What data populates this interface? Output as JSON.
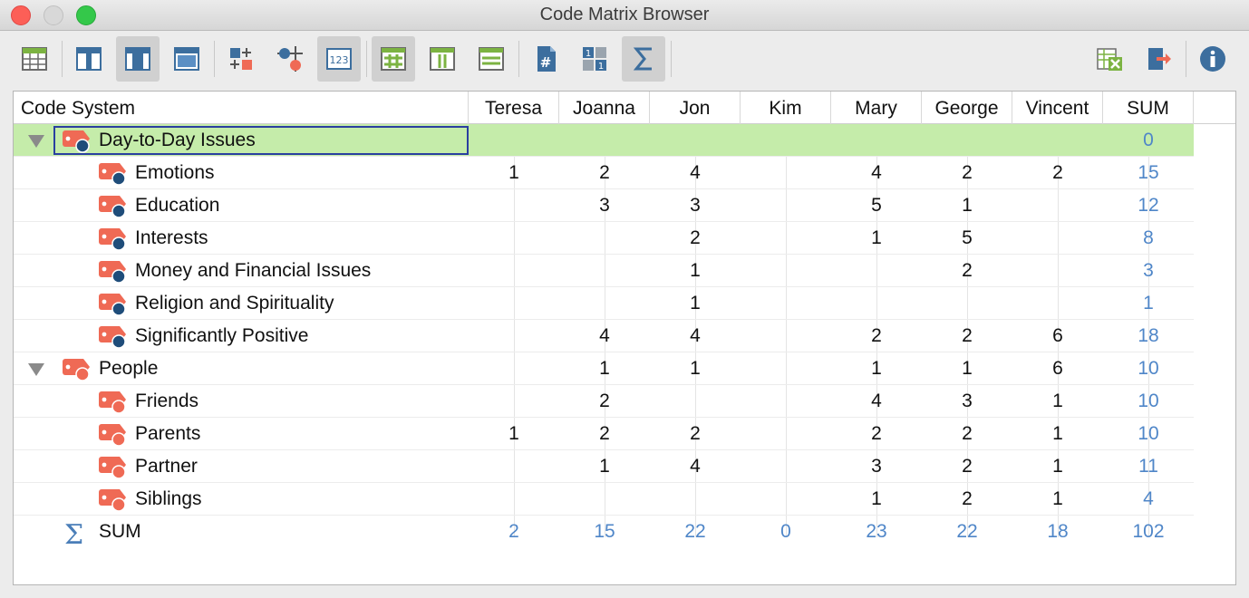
{
  "window": {
    "title": "Code Matrix Browser"
  },
  "toolbar": {
    "left": [
      "table-grid-icon",
      "layout-top-icon",
      "layout-center-icon",
      "layout-window-icon",
      "code-grid-icon",
      "node-link-icon",
      "numbers-123-icon",
      "hash-grid-icon",
      "columns-icon",
      "rows-icon",
      "document-hash-icon",
      "number-squares-icon",
      "sigma-icon"
    ],
    "right": [
      "excel-export-icon",
      "export-arrow-icon",
      "info-icon"
    ]
  },
  "table": {
    "code_header": "Code System",
    "columns": [
      "Teresa",
      "Joanna",
      "Jon",
      "Kim",
      "Mary",
      "George",
      "Vincent",
      "SUM"
    ],
    "rows": [
      {
        "label": "Day-to-Day Issues",
        "level": 0,
        "expanded": true,
        "selected": true,
        "icon_color": "#1f4d7a",
        "values": [
          "",
          "",
          "",
          "",
          "",
          "",
          ""
        ],
        "sum": "0"
      },
      {
        "label": "Emotions",
        "level": 1,
        "icon_color": "#1f4d7a",
        "values": [
          "1",
          "2",
          "4",
          "",
          "4",
          "2",
          "2"
        ],
        "sum": "15"
      },
      {
        "label": "Education",
        "level": 1,
        "icon_color": "#1f4d7a",
        "values": [
          "",
          "3",
          "3",
          "",
          "5",
          "1",
          ""
        ],
        "sum": "12"
      },
      {
        "label": "Interests",
        "level": 1,
        "icon_color": "#1f4d7a",
        "values": [
          "",
          "",
          "2",
          "",
          "1",
          "5",
          ""
        ],
        "sum": "8"
      },
      {
        "label": "Money and Financial Issues",
        "level": 1,
        "icon_color": "#1f4d7a",
        "values": [
          "",
          "",
          "1",
          "",
          "",
          "2",
          ""
        ],
        "sum": "3"
      },
      {
        "label": "Religion and Spirituality",
        "level": 1,
        "icon_color": "#1f4d7a",
        "values": [
          "",
          "",
          "1",
          "",
          "",
          "",
          ""
        ],
        "sum": "1"
      },
      {
        "label": "Significantly Positive",
        "level": 1,
        "icon_color": "#1f4d7a",
        "values": [
          "",
          "4",
          "4",
          "",
          "2",
          "2",
          "6"
        ],
        "sum": "18"
      },
      {
        "label": "People",
        "level": 0,
        "expanded": true,
        "icon_color": "#ef6a55",
        "values": [
          "",
          "1",
          "1",
          "",
          "1",
          "1",
          "6"
        ],
        "sum": "10"
      },
      {
        "label": "Friends",
        "level": 1,
        "icon_color": "#ef6a55",
        "values": [
          "",
          "2",
          "",
          "",
          "4",
          "3",
          "1"
        ],
        "sum": "10"
      },
      {
        "label": "Parents",
        "level": 1,
        "icon_color": "#ef6a55",
        "values": [
          "1",
          "2",
          "2",
          "",
          "2",
          "2",
          "1"
        ],
        "sum": "10"
      },
      {
        "label": "Partner",
        "level": 1,
        "icon_color": "#ef6a55",
        "values": [
          "",
          "1",
          "4",
          "",
          "3",
          "2",
          "1"
        ],
        "sum": "11"
      },
      {
        "label": "Siblings",
        "level": 1,
        "icon_color": "#ef6a55",
        "values": [
          "",
          "",
          "",
          "",
          "1",
          "2",
          "1"
        ],
        "sum": "4"
      }
    ],
    "sum_row": {
      "label": "SUM",
      "values": [
        "2",
        "15",
        "22",
        "0",
        "23",
        "22",
        "18"
      ],
      "sum": "102"
    }
  },
  "colors": {
    "selected_row": "#c5ecaa",
    "sum_text": "#4f86c8",
    "code_tag": "#ef6a55"
  }
}
